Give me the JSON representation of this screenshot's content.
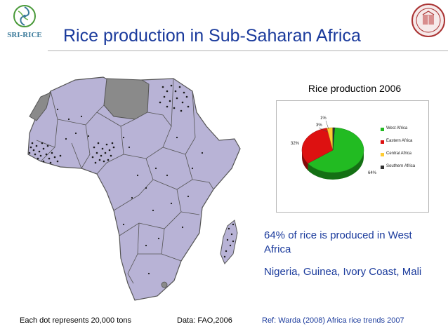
{
  "header": {
    "logo_text": "SRI-RICE",
    "title": "Rice production in Sub-Saharan Africa"
  },
  "chart_data": {
    "type": "pie",
    "title": "Rice production 2006",
    "labels": [
      "West Africa",
      "Eastern Africa",
      "Central Africa",
      "Southern Africa"
    ],
    "values": [
      64,
      32,
      3,
      1
    ],
    "value_labels": [
      "64%",
      "32%",
      "3%",
      "1%"
    ],
    "colors": [
      "#22bb22",
      "#dd1111",
      "#ffcc33",
      "#333333"
    ],
    "legend": "right",
    "style": "3d"
  },
  "bullets": [
    "64% of rice is produced in West Africa",
    "Nigeria, Guinea, Ivory Coast, Mali"
  ],
  "footer": {
    "note": "Each dot represents 20,000 tons",
    "source": "Data: FAO,2006",
    "reference": "Ref: Warda (2008) Africa rice trends 2007"
  },
  "colors": {
    "title": "#1a3a9c",
    "map_land": "#b8b3d6",
    "map_border": "#555555",
    "map_excluded": "#8a8a8a"
  }
}
